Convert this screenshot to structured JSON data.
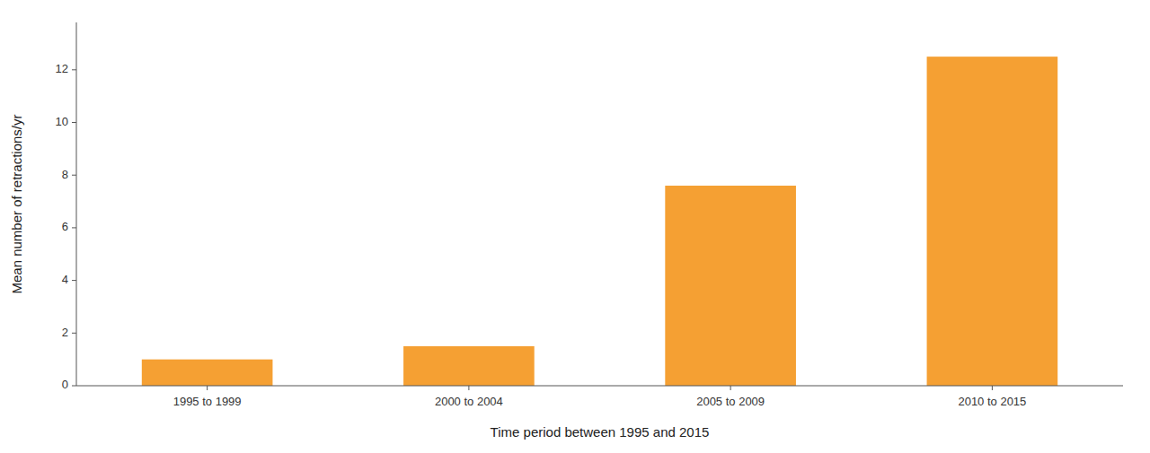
{
  "chart_data": {
    "type": "bar",
    "categories": [
      "1995 to 1999",
      "2000 to 2004",
      "2005 to 2009",
      "2010 to 2015"
    ],
    "values": [
      1.0,
      1.5,
      7.6,
      12.5
    ],
    "color": "#F5A033",
    "xlabel": "Time period between 1995 and 2015",
    "ylabel": "Mean number of retractions/yr",
    "ylim": [
      0,
      13.8
    ],
    "yticks": [
      0,
      2,
      4,
      6,
      8,
      10,
      12
    ],
    "grid": false
  }
}
